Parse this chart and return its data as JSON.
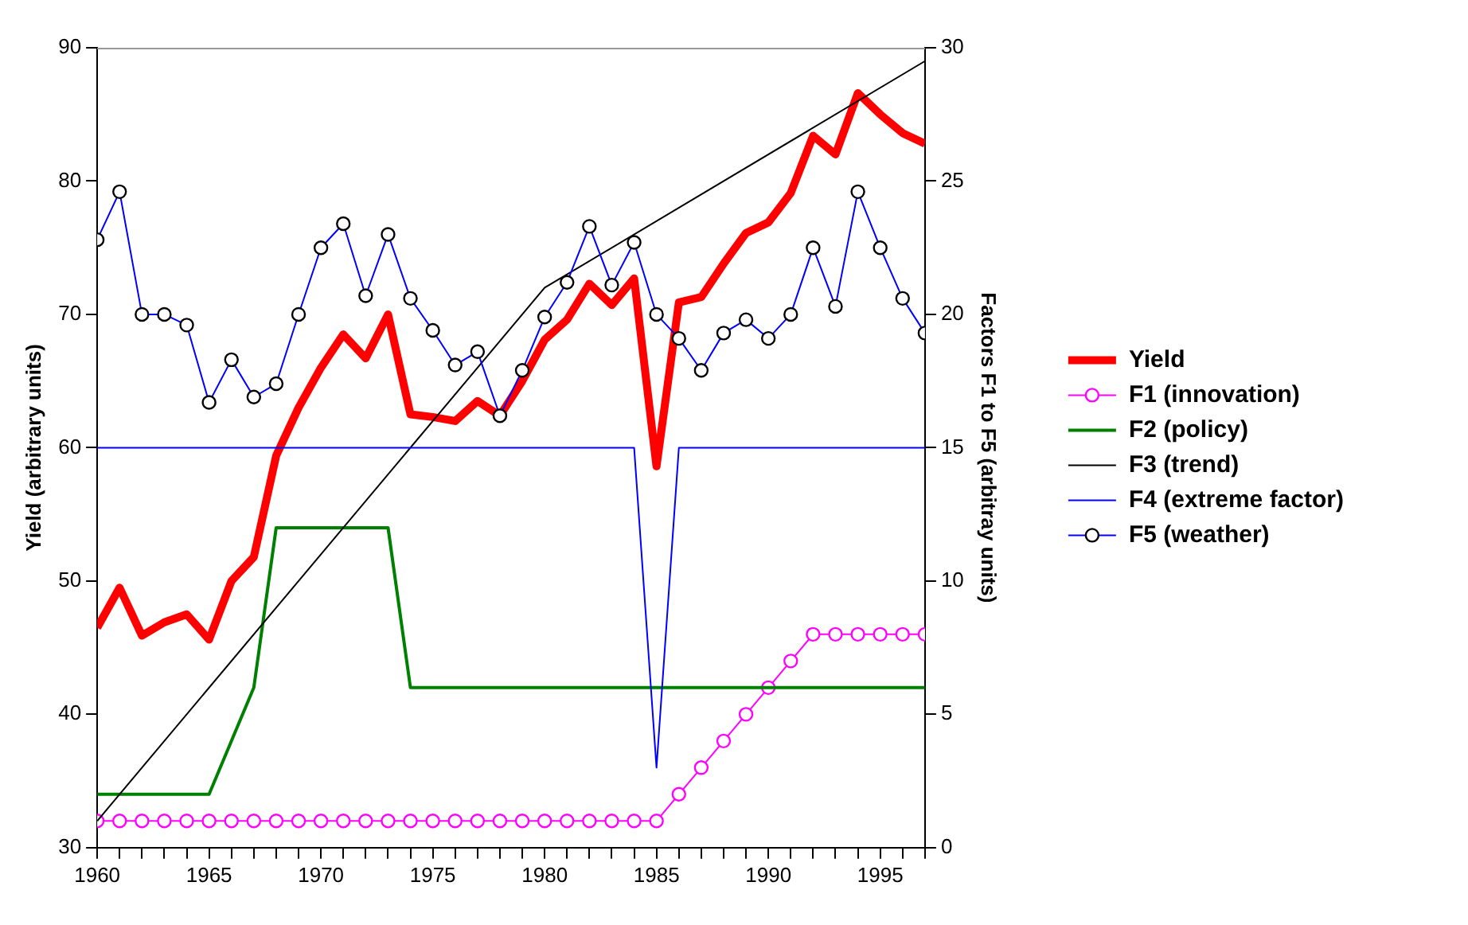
{
  "chart_data": {
    "type": "line",
    "ylabel": "Yield (arbitrary units)",
    "y2label": "Factors F1 to F5 (arbitray units)",
    "x": [
      1960,
      1961,
      1962,
      1963,
      1964,
      1965,
      1966,
      1967,
      1968,
      1969,
      1970,
      1971,
      1972,
      1973,
      1974,
      1975,
      1976,
      1977,
      1978,
      1979,
      1980,
      1981,
      1982,
      1983,
      1984,
      1985,
      1986,
      1987,
      1988,
      1989,
      1990,
      1991,
      1992,
      1993,
      1994,
      1995,
      1996,
      1997
    ],
    "xlim": [
      1960,
      1997
    ],
    "xticks": [
      1960,
      {
        "value": 1961,
        "label": null
      },
      {
        "value": 1962,
        "label": null
      },
      {
        "value": 1963,
        "label": null
      },
      {
        "value": 1964,
        "label": null
      },
      1965,
      {
        "value": 1966,
        "label": null
      },
      {
        "value": 1967,
        "label": null
      },
      {
        "value": 1968,
        "label": null
      },
      {
        "value": 1969,
        "label": null
      },
      1970,
      {
        "value": 1971,
        "label": null
      },
      {
        "value": 1972,
        "label": null
      },
      {
        "value": 1973,
        "label": null
      },
      {
        "value": 1974,
        "label": null
      },
      1975,
      {
        "value": 1976,
        "label": null
      },
      {
        "value": 1977,
        "label": null
      },
      {
        "value": 1978,
        "label": null
      },
      {
        "value": 1979,
        "label": null
      },
      1980,
      {
        "value": 1981,
        "label": null
      },
      {
        "value": 1982,
        "label": null
      },
      {
        "value": 1983,
        "label": null
      },
      {
        "value": 1984,
        "label": null
      },
      1985,
      {
        "value": 1986,
        "label": null
      },
      {
        "value": 1987,
        "label": null
      },
      {
        "value": 1988,
        "label": null
      },
      {
        "value": 1989,
        "label": null
      },
      1990,
      {
        "value": 1991,
        "label": null
      },
      {
        "value": 1992,
        "label": null
      },
      {
        "value": 1993,
        "label": null
      },
      {
        "value": 1994,
        "label": null
      },
      1995,
      {
        "value": 1996,
        "label": null
      },
      {
        "value": 1997,
        "label": null
      }
    ],
    "ylim": [
      30,
      90
    ],
    "yticks": [
      30,
      40,
      50,
      60,
      70,
      80,
      90
    ],
    "y2lim": [
      0,
      30
    ],
    "y2ticks": [
      0,
      5,
      10,
      15,
      20,
      25,
      30
    ],
    "grid": false,
    "legend": "right",
    "series": [
      {
        "name": "Yield",
        "color": "#ff0000",
        "marker": "none",
        "values": [
          46.5,
          49.5,
          45.9,
          46.9,
          47.5,
          45.6,
          50.0,
          51.8,
          59.4,
          63.0,
          66.0,
          68.5,
          66.7,
          70.0,
          62.5,
          62.3,
          62.0,
          63.5,
          62.4,
          65.0,
          68.1,
          69.6,
          72.3,
          70.7,
          72.7,
          58.6,
          70.9,
          71.3,
          73.8,
          76.1,
          76.9,
          79.1,
          83.4,
          82.0,
          86.6,
          85.0,
          83.6,
          82.8
        ]
      },
      {
        "name": "F1 (innovation)",
        "color": "#ff00ff",
        "marker": "circle",
        "axis": "y2",
        "values": [
          1,
          1,
          1,
          1,
          1,
          1,
          1,
          1,
          1,
          1,
          1,
          1,
          1,
          1,
          1,
          1,
          1,
          1,
          1,
          1,
          1,
          1,
          1,
          1,
          1,
          1,
          2,
          3,
          4,
          5,
          6,
          7,
          8,
          8,
          8,
          8,
          8,
          8
        ]
      },
      {
        "name": "F2 (policy)",
        "color": "#008000",
        "marker": "none",
        "axis": "y2",
        "values": [
          2,
          2,
          2,
          2,
          2,
          2,
          4,
          6,
          12,
          12,
          12,
          12,
          12,
          12,
          6,
          6,
          6,
          6,
          6,
          6,
          6,
          6,
          6,
          6,
          6,
          6,
          6,
          6,
          6,
          6,
          6,
          6,
          6,
          6,
          6,
          6,
          6,
          6
        ]
      },
      {
        "name": "F3 (trend)",
        "color": "#000000",
        "marker": "none",
        "axis": "y2",
        "x": [
          1960,
          1980,
          1997
        ],
        "values": [
          1,
          21,
          29.5
        ]
      },
      {
        "name": "F4 (extreme factor)",
        "color": "#0000ff",
        "marker": "none",
        "axis": "y2",
        "x": [
          1960,
          1984,
          1985,
          1986,
          1997
        ],
        "values": [
          15,
          15,
          3,
          15,
          15
        ]
      },
      {
        "name": "F5 (weather)",
        "color": "#0000ff",
        "marker": "circle",
        "axis": "y2",
        "values": [
          22.8,
          24.6,
          20.0,
          20.0,
          19.6,
          16.7,
          18.3,
          16.9,
          17.4,
          20.0,
          22.5,
          23.4,
          20.7,
          23.0,
          20.6,
          19.4,
          18.1,
          18.6,
          16.2,
          17.9,
          19.9,
          21.2,
          23.3,
          21.1,
          22.7,
          20.0,
          19.1,
          17.9,
          19.3,
          19.8,
          19.1,
          20.0,
          22.5,
          20.3,
          24.6,
          22.5,
          20.6,
          19.3
        ]
      }
    ]
  }
}
